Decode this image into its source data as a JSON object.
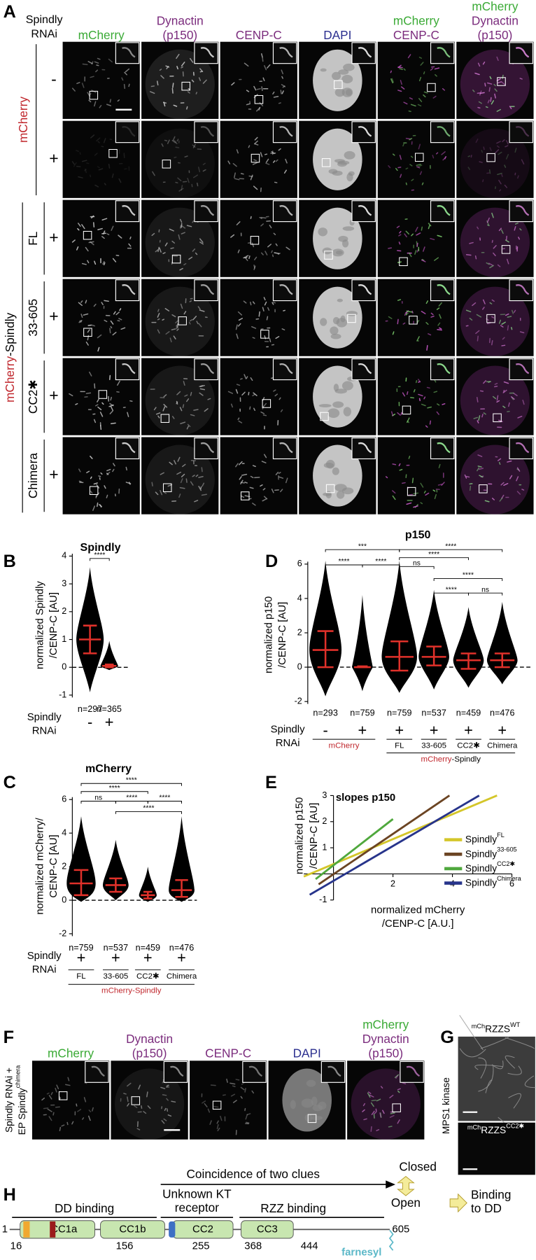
{
  "panel_a": {
    "letter": "A",
    "rnai_header": [
      "Spindly",
      "RNAi"
    ],
    "columns": [
      [
        {
          "text": "mCherry",
          "color": "#3aaa35"
        }
      ],
      [
        {
          "text": "Dynactin",
          "color": "#7b2c7d"
        },
        {
          "text": "(p150)",
          "color": "#7b2c7d"
        }
      ],
      [
        {
          "text": "CENP-C",
          "color": "#7b2c7d"
        }
      ],
      [
        {
          "text": "DAPI",
          "color": "#2b2f8f"
        }
      ],
      [
        {
          "text": "mCherry",
          "color": "#3aaa35"
        },
        {
          "text": "CENP-C",
          "color": "#7b2c7d"
        }
      ],
      [
        {
          "text": "mCherry",
          "color": "#3aaa35"
        },
        {
          "text": "Dynactin",
          "color": "#7b2c7d"
        },
        {
          "text": "(p150)",
          "color": "#7b2c7d"
        }
      ]
    ],
    "rnai": [
      "-",
      "+",
      "+",
      "+",
      "+",
      "+"
    ],
    "control_label": {
      "text": "mCherry",
      "color": "#c0272d"
    },
    "construct_label": [
      {
        "text": "mCherry",
        "color": "#c0272d"
      },
      {
        "text": "-Spindly",
        "color": "#000000"
      }
    ],
    "variants": [
      "FL",
      "33-605",
      "CC2✱",
      "Chimera"
    ]
  },
  "chart_data": [
    {
      "type": "strip",
      "panel": "B",
      "title": "Spindly",
      "y_label": [
        "normalized Spindly",
        "/CENP-C [AU]"
      ],
      "ylim": [
        -1,
        4
      ],
      "yticks": [
        -1,
        0,
        1,
        2,
        3,
        4
      ],
      "categories": [
        "-",
        "+"
      ],
      "n_labels": [
        "n=297",
        "n=365"
      ],
      "x_title": [
        "Spindly",
        "RNAi"
      ],
      "mean": [
        1.0,
        0.05
      ],
      "sd_low": [
        0.5,
        0
      ],
      "sd_high": [
        1.5,
        0.1
      ],
      "min": [
        -0.9,
        -0.1
      ],
      "max": [
        3.6,
        0.95
      ],
      "dot_color": "#000000",
      "error_color": "#e0312a",
      "zero_line": true,
      "significance": [
        "****"
      ]
    },
    {
      "type": "strip",
      "panel": "C",
      "title": "mCherry",
      "y_label": [
        "normalized mCherry/",
        "CENP-C [AU]"
      ],
      "ylim": [
        -2,
        6
      ],
      "yticks": [
        -2,
        0,
        2,
        4,
        6
      ],
      "categories": [
        "+",
        "+",
        "+",
        "+"
      ],
      "n_labels": [
        "n=759",
        "n=537",
        "n=459",
        "n=476"
      ],
      "x_title": [
        "Spindly",
        "RNAi"
      ],
      "group_labels": [
        {
          "text": "FL",
          "color": "#000000"
        },
        {
          "text": "33-605",
          "color": "#000000"
        },
        {
          "text": "CC2✱",
          "color": "#000000"
        },
        {
          "text": "Chimera",
          "color": "#000000"
        }
      ],
      "main_label": [
        {
          "text": "mCherry-Spindly",
          "color": "#c0272d"
        }
      ],
      "mean": [
        1.0,
        0.9,
        0.3,
        0.6
      ],
      "sd_low": [
        0.3,
        0.5,
        0.1,
        0.2
      ],
      "sd_high": [
        1.8,
        1.3,
        0.5,
        1.2
      ],
      "min": [
        -0.1,
        0,
        -0.1,
        -0.1
      ],
      "max": [
        5.0,
        3.6,
        2.0,
        5.0
      ],
      "dot_color": "#000000",
      "error_color": "#e0312a",
      "zero_line": true,
      "significance": [
        "****",
        "****",
        "ns",
        "****",
        "****",
        "****"
      ]
    },
    {
      "type": "strip",
      "panel": "D",
      "title": "p150",
      "y_label": [
        "normalized p150",
        "/CENP-C [AU]"
      ],
      "ylim": [
        -2,
        6
      ],
      "yticks": [
        -2,
        0,
        2,
        4,
        6
      ],
      "categories": [
        "-",
        "+",
        "+",
        "+",
        "+",
        "+"
      ],
      "n_labels": [
        "n=293",
        "n=759",
        "n=759",
        "n=537",
        "n=459",
        "n=476"
      ],
      "x_title": [
        "Spindly",
        "RNAi"
      ],
      "group_labels": [
        {
          "text": "mCherry",
          "color": "#c0272d"
        },
        {
          "text": "FL",
          "color": "#000000"
        },
        {
          "text": "33-605",
          "color": "#000000"
        },
        {
          "text": "CC2✱",
          "color": "#000000"
        },
        {
          "text": "Chimera",
          "color": "#000000"
        }
      ],
      "main_label": [
        {
          "text": "mCherry",
          "color": "#c0272d"
        },
        {
          "text": "-Spindly",
          "color": "#000000"
        }
      ],
      "mean": [
        1.0,
        0,
        0.6,
        0.6,
        0.4,
        0.4
      ],
      "sd_low": [
        0,
        0,
        -0.2,
        0.1,
        -0.1,
        0
      ],
      "sd_high": [
        2.1,
        0.05,
        1.5,
        1.2,
        0.8,
        0.8
      ],
      "min": [
        -1.7,
        -1.4,
        -1.5,
        -1.3,
        -1.2,
        -1.0
      ],
      "max": [
        6.2,
        4.2,
        6.2,
        4.5,
        3.5,
        3.8
      ],
      "dot_color": "#000000",
      "error_color": "#e0312a",
      "zero_line": true,
      "significance": [
        "***",
        "****",
        "****",
        "****",
        "****",
        "ns",
        "****",
        "****",
        "ns"
      ]
    },
    {
      "type": "line",
      "panel": "E",
      "title": "slopes p150",
      "x_label": [
        "normalized mCherry",
        "/CENP-C [A.U.]"
      ],
      "y_label": [
        "normalized p150",
        "/CENP-C [AU]"
      ],
      "xlim": [
        -1,
        6
      ],
      "ylim": [
        -1,
        3
      ],
      "xticks": [
        2,
        4,
        6
      ],
      "yticks": [
        -1,
        1,
        2,
        3
      ],
      "series": [
        {
          "name": "Spindly",
          "name_sup": "FL",
          "color": "#d4c62a",
          "x": [
            -1,
            5.5
          ],
          "values": [
            -0.1,
            3
          ]
        },
        {
          "name": "Spindly",
          "name_sup": "33-605",
          "color": "#6b4423",
          "x": [
            -0.5,
            3.9
          ],
          "values": [
            -0.4,
            3
          ]
        },
        {
          "name": "Spindly",
          "name_sup": "CC2✱",
          "color": "#4fa83d",
          "x": [
            -0.6,
            2
          ],
          "values": [
            -0.2,
            2.1
          ]
        },
        {
          "name": "Spindly",
          "name_sup": "Chimera",
          "color": "#27348b",
          "x": [
            -0.8,
            4.9
          ],
          "values": [
            -0.8,
            3
          ]
        }
      ]
    }
  ],
  "panel_f": {
    "letter": "F",
    "side": [
      "Spindly RNAi +",
      "EP Spindly"
    ],
    "side_sup": "chimera",
    "columns": [
      [
        {
          "text": "mCherry",
          "color": "#3aaa35"
        }
      ],
      [
        {
          "text": "Dynactin",
          "color": "#7b2c7d"
        },
        {
          "text": "(p150)",
          "color": "#7b2c7d"
        }
      ],
      [
        {
          "text": "CENP-C",
          "color": "#7b2c7d"
        }
      ],
      [
        {
          "text": "DAPI",
          "color": "#2b2f8f"
        }
      ],
      [
        {
          "text": "mCherry",
          "color": "#3aaa35"
        },
        {
          "text": "Dynactin",
          "color": "#7b2c7d"
        },
        {
          "text": "(p150)",
          "color": "#7b2c7d"
        }
      ]
    ]
  },
  "panel_g": {
    "letter": "G",
    "side": "MPS1 kinase",
    "top": {
      "prefix": "mCh",
      "name": "RZZS",
      "sup": "WT"
    },
    "bottom": {
      "prefix": "mCh",
      "name": "RZZS",
      "sup": "CC2✱"
    }
  },
  "panel_h": {
    "letter": "H",
    "clues": "Coincidence of two clues",
    "closed": "Closed",
    "open": "Open",
    "binding": [
      "Binding",
      "to DD"
    ],
    "region_dd": "DD binding",
    "region_kt": [
      "Unknown KT",
      "receptor"
    ],
    "region_rzz": "RZZ binding",
    "domains": [
      "CC1a",
      "CC1b",
      "CC2",
      "CC3"
    ],
    "start": 1,
    "end": 605,
    "residues": [
      16,
      156,
      255,
      368,
      444
    ],
    "farnesyl": "farnesyl"
  }
}
